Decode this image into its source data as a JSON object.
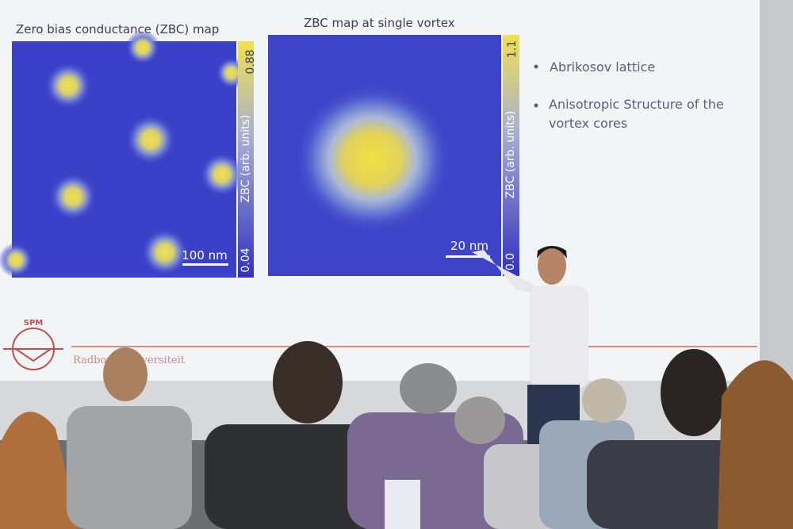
{
  "slide": {
    "left_panel": {
      "title": "Zero bias conductance (ZBC) map",
      "colorbar_max": "0.88",
      "colorbar_min": "0.04",
      "colorbar_label": "ZBC (arb. units)",
      "scale_bar": "100 nm"
    },
    "right_panel": {
      "title": "ZBC map at single vortex",
      "colorbar_max": "1.1",
      "colorbar_min": "0.0",
      "colorbar_label": "ZBC (arb. units)",
      "scale_bar": "20 nm"
    },
    "bullets": [
      "Abrikosov lattice",
      "Anisotropic Structure of the vortex cores"
    ],
    "logo": {
      "acronym": "SPM",
      "institution": "Radboud Universiteit"
    }
  }
}
